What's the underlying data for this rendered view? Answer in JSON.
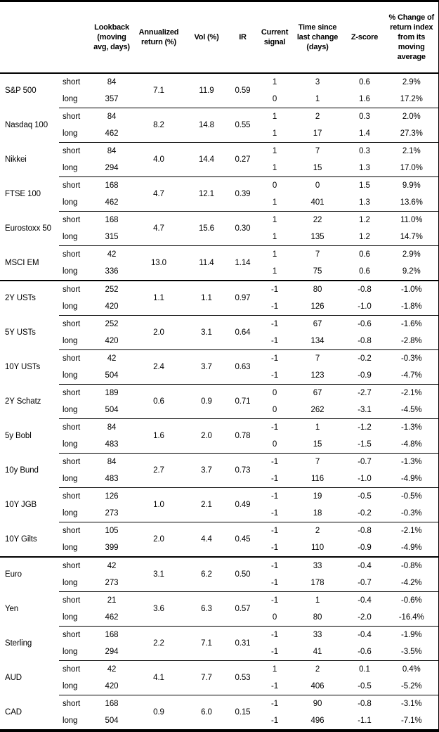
{
  "table": {
    "header": {
      "labels": [
        "",
        "",
        "Lookback\n(moving\navg, days)",
        "Annualized\nreturn (%)",
        "Vol (%)",
        "IR",
        "Current\nsignal",
        "Time since\nlast change\n(days)",
        "Z-score",
        "% Change of\nreturn index\nfrom its\nmoving\naverage"
      ]
    },
    "row_labels": {
      "short": "short",
      "long": "long"
    },
    "sections": [
      {
        "name": "equity-indices",
        "assets": [
          {
            "name": "S&P 500",
            "annualized_return": "7.1",
            "vol": "11.9",
            "ir": "0.59",
            "short": {
              "lookback": "84",
              "signal": "1",
              "days": "3",
              "z": "0.6",
              "pct": "2.9%"
            },
            "long": {
              "lookback": "357",
              "signal": "0",
              "days": "1",
              "z": "1.6",
              "pct": "17.2%"
            }
          },
          {
            "name": "Nasdaq 100",
            "annualized_return": "8.2",
            "vol": "14.8",
            "ir": "0.55",
            "short": {
              "lookback": "84",
              "signal": "1",
              "days": "2",
              "z": "0.3",
              "pct": "2.0%"
            },
            "long": {
              "lookback": "462",
              "signal": "1",
              "days": "17",
              "z": "1.4",
              "pct": "27.3%"
            }
          },
          {
            "name": "Nikkei",
            "annualized_return": "4.0",
            "vol": "14.4",
            "ir": "0.27",
            "short": {
              "lookback": "84",
              "signal": "1",
              "days": "7",
              "z": "0.3",
              "pct": "2.1%"
            },
            "long": {
              "lookback": "294",
              "signal": "1",
              "days": "15",
              "z": "1.3",
              "pct": "17.0%"
            }
          },
          {
            "name": "FTSE 100",
            "annualized_return": "4.7",
            "vol": "12.1",
            "ir": "0.39",
            "short": {
              "lookback": "168",
              "signal": "0",
              "days": "0",
              "z": "1.5",
              "pct": "9.9%"
            },
            "long": {
              "lookback": "462",
              "signal": "1",
              "days": "401",
              "z": "1.3",
              "pct": "13.6%"
            }
          },
          {
            "name": "Eurostoxx 50",
            "annualized_return": "4.7",
            "vol": "15.6",
            "ir": "0.30",
            "short": {
              "lookback": "168",
              "signal": "1",
              "days": "22",
              "z": "1.2",
              "pct": "11.0%"
            },
            "long": {
              "lookback": "315",
              "signal": "1",
              "days": "135",
              "z": "1.2",
              "pct": "14.7%"
            }
          },
          {
            "name": "MSCI EM",
            "annualized_return": "13.0",
            "vol": "11.4",
            "ir": "1.14",
            "short": {
              "lookback": "42",
              "signal": "1",
              "days": "7",
              "z": "0.6",
              "pct": "2.9%"
            },
            "long": {
              "lookback": "336",
              "signal": "1",
              "days": "75",
              "z": "0.6",
              "pct": "9.2%"
            }
          }
        ]
      },
      {
        "name": "government-bonds",
        "assets": [
          {
            "name": "2Y USTs",
            "annualized_return": "1.1",
            "vol": "1.1",
            "ir": "0.97",
            "short": {
              "lookback": "252",
              "signal": "-1",
              "days": "80",
              "z": "-0.8",
              "pct": "-1.0%"
            },
            "long": {
              "lookback": "420",
              "signal": "-1",
              "days": "126",
              "z": "-1.0",
              "pct": "-1.8%"
            }
          },
          {
            "name": "5Y USTs",
            "annualized_return": "2.0",
            "vol": "3.1",
            "ir": "0.64",
            "short": {
              "lookback": "252",
              "signal": "-1",
              "days": "67",
              "z": "-0.6",
              "pct": "-1.6%"
            },
            "long": {
              "lookback": "420",
              "signal": "-1",
              "days": "134",
              "z": "-0.8",
              "pct": "-2.8%"
            }
          },
          {
            "name": "10Y USTs",
            "annualized_return": "2.4",
            "vol": "3.7",
            "ir": "0.63",
            "short": {
              "lookback": "42",
              "signal": "-1",
              "days": "7",
              "z": "-0.2",
              "pct": "-0.3%"
            },
            "long": {
              "lookback": "504",
              "signal": "-1",
              "days": "123",
              "z": "-0.9",
              "pct": "-4.7%"
            }
          },
          {
            "name": "2Y Schatz",
            "annualized_return": "0.6",
            "vol": "0.9",
            "ir": "0.71",
            "short": {
              "lookback": "189",
              "signal": "0",
              "days": "67",
              "z": "-2.7",
              "pct": "-2.1%"
            },
            "long": {
              "lookback": "504",
              "signal": "0",
              "days": "262",
              "z": "-3.1",
              "pct": "-4.5%"
            }
          },
          {
            "name": "5y Bobl",
            "annualized_return": "1.6",
            "vol": "2.0",
            "ir": "0.78",
            "short": {
              "lookback": "84",
              "signal": "-1",
              "days": "1",
              "z": "-1.2",
              "pct": "-1.3%"
            },
            "long": {
              "lookback": "483",
              "signal": "0",
              "days": "15",
              "z": "-1.5",
              "pct": "-4.8%"
            }
          },
          {
            "name": "10y Bund",
            "annualized_return": "2.7",
            "vol": "3.7",
            "ir": "0.73",
            "short": {
              "lookback": "84",
              "signal": "-1",
              "days": "7",
              "z": "-0.7",
              "pct": "-1.3%"
            },
            "long": {
              "lookback": "483",
              "signal": "-1",
              "days": "116",
              "z": "-1.0",
              "pct": "-4.9%"
            }
          },
          {
            "name": "10Y JGB",
            "annualized_return": "1.0",
            "vol": "2.1",
            "ir": "0.49",
            "short": {
              "lookback": "126",
              "signal": "-1",
              "days": "19",
              "z": "-0.5",
              "pct": "-0.5%"
            },
            "long": {
              "lookback": "273",
              "signal": "-1",
              "days": "18",
              "z": "-0.2",
              "pct": "-0.3%"
            }
          },
          {
            "name": "10Y Gilts",
            "annualized_return": "2.0",
            "vol": "4.4",
            "ir": "0.45",
            "short": {
              "lookback": "105",
              "signal": "-1",
              "days": "2",
              "z": "-0.8",
              "pct": "-2.1%"
            },
            "long": {
              "lookback": "399",
              "signal": "-1",
              "days": "110",
              "z": "-0.9",
              "pct": "-4.9%"
            }
          }
        ]
      },
      {
        "name": "currencies",
        "assets": [
          {
            "name": "Euro",
            "annualized_return": "3.1",
            "vol": "6.2",
            "ir": "0.50",
            "short": {
              "lookback": "42",
              "signal": "-1",
              "days": "33",
              "z": "-0.4",
              "pct": "-0.8%"
            },
            "long": {
              "lookback": "273",
              "signal": "-1",
              "days": "178",
              "z": "-0.7",
              "pct": "-4.2%"
            }
          },
          {
            "name": "Yen",
            "annualized_return": "3.6",
            "vol": "6.3",
            "ir": "0.57",
            "short": {
              "lookback": "21",
              "signal": "-1",
              "days": "1",
              "z": "-0.4",
              "pct": "-0.6%"
            },
            "long": {
              "lookback": "462",
              "signal": "0",
              "days": "80",
              "z": "-2.0",
              "pct": "-16.4%"
            }
          },
          {
            "name": "Sterling",
            "annualized_return": "2.2",
            "vol": "7.1",
            "ir": "0.31",
            "short": {
              "lookback": "168",
              "signal": "-1",
              "days": "33",
              "z": "-0.4",
              "pct": "-1.9%"
            },
            "long": {
              "lookback": "294",
              "signal": "-1",
              "days": "41",
              "z": "-0.6",
              "pct": "-3.5%"
            }
          },
          {
            "name": "AUD",
            "annualized_return": "4.1",
            "vol": "7.7",
            "ir": "0.53",
            "short": {
              "lookback": "42",
              "signal": "1",
              "days": "2",
              "z": "0.1",
              "pct": "0.4%"
            },
            "long": {
              "lookback": "420",
              "signal": "-1",
              "days": "406",
              "z": "-0.5",
              "pct": "-5.2%"
            }
          },
          {
            "name": "CAD",
            "annualized_return": "0.9",
            "vol": "6.0",
            "ir": "0.15",
            "short": {
              "lookback": "168",
              "signal": "-1",
              "days": "90",
              "z": "-0.8",
              "pct": "-3.1%"
            },
            "long": {
              "lookback": "504",
              "signal": "-1",
              "days": "496",
              "z": "-1.1",
              "pct": "-7.1%"
            }
          }
        ]
      }
    ]
  },
  "colors": {
    "border": "#000000",
    "text": "#000000",
    "background": "#ffffff"
  }
}
